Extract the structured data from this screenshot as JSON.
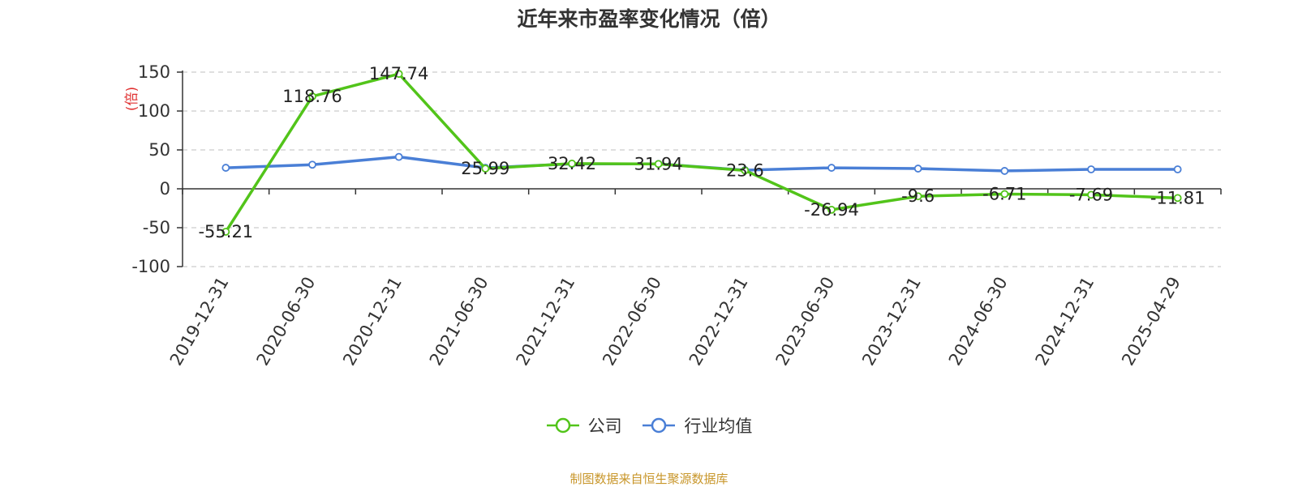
{
  "colors": {
    "company": "#52c41a",
    "industry": "#4a7fd6",
    "ylabel": "#e03030",
    "source": "#c8962a",
    "grid": "#cccccc",
    "axis": "#333333"
  },
  "chart_data": {
    "type": "line",
    "title": "近年来市盈率变化情况（倍）",
    "ylabel": "(倍)",
    "xlabel": "",
    "ylim": [
      -100,
      150
    ],
    "yticks": [
      -100,
      -50,
      0,
      50,
      100,
      150
    ],
    "grid": true,
    "legend_position": "bottom-center",
    "categories": [
      "2019-12-31",
      "2020-06-30",
      "2020-12-31",
      "2021-06-30",
      "2021-12-31",
      "2022-06-30",
      "2022-12-31",
      "2023-06-30",
      "2023-12-31",
      "2024-06-30",
      "2024-12-31",
      "2025-04-29"
    ],
    "series": [
      {
        "name": "公司",
        "values": [
          -55.21,
          118.76,
          147.74,
          25.99,
          32.42,
          31.94,
          23.6,
          -26.94,
          -9.6,
          -6.71,
          -7.69,
          -11.81
        ],
        "labels": [
          "-55.21",
          "118.76",
          "147.74",
          "25.99",
          "32.42",
          "31.94",
          "23.6",
          "-26.94",
          "-9.6",
          "-6.71",
          "-7.69",
          "-11.81"
        ]
      },
      {
        "name": "行业均值",
        "values": [
          27,
          31,
          41,
          27,
          32,
          32,
          24,
          27,
          26,
          23,
          25,
          25
        ]
      }
    ]
  },
  "source_note": "制图数据来自恒生聚源数据库"
}
